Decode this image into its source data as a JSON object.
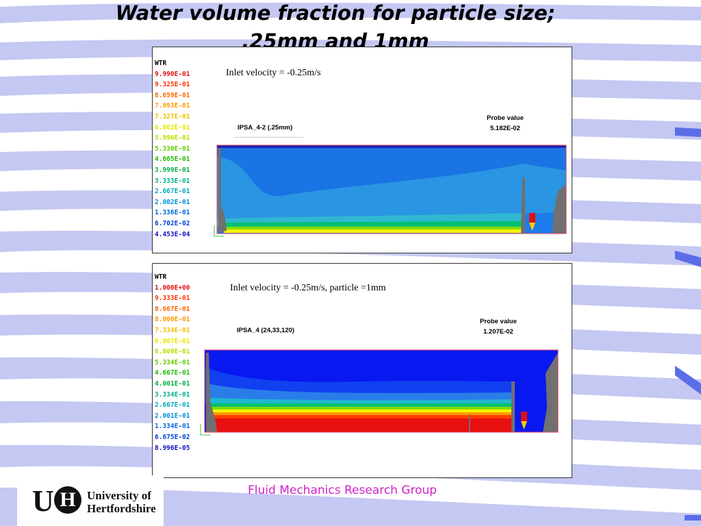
{
  "slide": {
    "title_line1": "Water volume fraction for particle size;",
    "title_line2": ".25mm and 1mm",
    "footer": "Fluid Mechanics Research Group",
    "logo_initial_u": "U",
    "logo_initial_h": "H",
    "logo_name_line1": "University of",
    "logo_name_line2": "Hertfordshire"
  },
  "colors": {
    "background_stripe": "#c4c8f2",
    "accent_blue": "#5b6ee8",
    "footer_text": "#d020c8"
  },
  "panels": [
    {
      "legend_title": "WTR",
      "legend": [
        {
          "value": "9.990E-01",
          "color": "#e01010"
        },
        {
          "value": "9.325E-01",
          "color": "#ff3300"
        },
        {
          "value": "8.659E-01",
          "color": "#ff6a00"
        },
        {
          "value": "7.993E-01",
          "color": "#ff9900"
        },
        {
          "value": "7.327E-01",
          "color": "#ffcc00"
        },
        {
          "value": "6.662E-01",
          "color": "#f5f500"
        },
        {
          "value": "5.996E-01",
          "color": "#ccee00"
        },
        {
          "value": "5.330E-01",
          "color": "#88dd00"
        },
        {
          "value": "4.665E-01",
          "color": "#33cc00"
        },
        {
          "value": "3.999E-01",
          "color": "#00c040"
        },
        {
          "value": "3.333E-01",
          "color": "#00c090"
        },
        {
          "value": "2.667E-01",
          "color": "#00b8c8"
        },
        {
          "value": "2.002E-01",
          "color": "#0099dd"
        },
        {
          "value": "1.336E-01",
          "color": "#0070e0"
        },
        {
          "value": "6.702E-02",
          "color": "#0040e0"
        },
        {
          "value": "4.453E-04",
          "color": "#1010c0"
        }
      ],
      "note": "Inlet velocity = -0.25m/s",
      "case_label": "IPSA_4-2 (.25mm)",
      "probe_label": "Probe value",
      "probe_value": "5.182E-02"
    },
    {
      "legend_title": "WTR",
      "legend": [
        {
          "value": "1.000E+00",
          "color": "#e01010"
        },
        {
          "value": "9.333E-01",
          "color": "#ff3300"
        },
        {
          "value": "8.667E-01",
          "color": "#ff6a00"
        },
        {
          "value": "8.000E-01",
          "color": "#ff9900"
        },
        {
          "value": "7.334E-01",
          "color": "#ffcc00"
        },
        {
          "value": "6.667E-01",
          "color": "#f5f500"
        },
        {
          "value": "6.000E-01",
          "color": "#ccee00"
        },
        {
          "value": "5.334E-01",
          "color": "#88dd00"
        },
        {
          "value": "4.667E-01",
          "color": "#33cc00"
        },
        {
          "value": "4.001E-01",
          "color": "#00c040"
        },
        {
          "value": "3.334E-01",
          "color": "#00c090"
        },
        {
          "value": "2.667E-01",
          "color": "#00b8c8"
        },
        {
          "value": "2.001E-01",
          "color": "#0099dd"
        },
        {
          "value": "1.334E-01",
          "color": "#0070e0"
        },
        {
          "value": "6.675E-02",
          "color": "#0040e0"
        },
        {
          "value": "8.996E-05",
          "color": "#1010c0"
        }
      ],
      "note": "Inlet velocity = -0.25m/s, particle =1mm",
      "case_label": "IPSA_4 (24,33,120)",
      "probe_label": "Probe value",
      "probe_value": "1.207E-02"
    }
  ]
}
